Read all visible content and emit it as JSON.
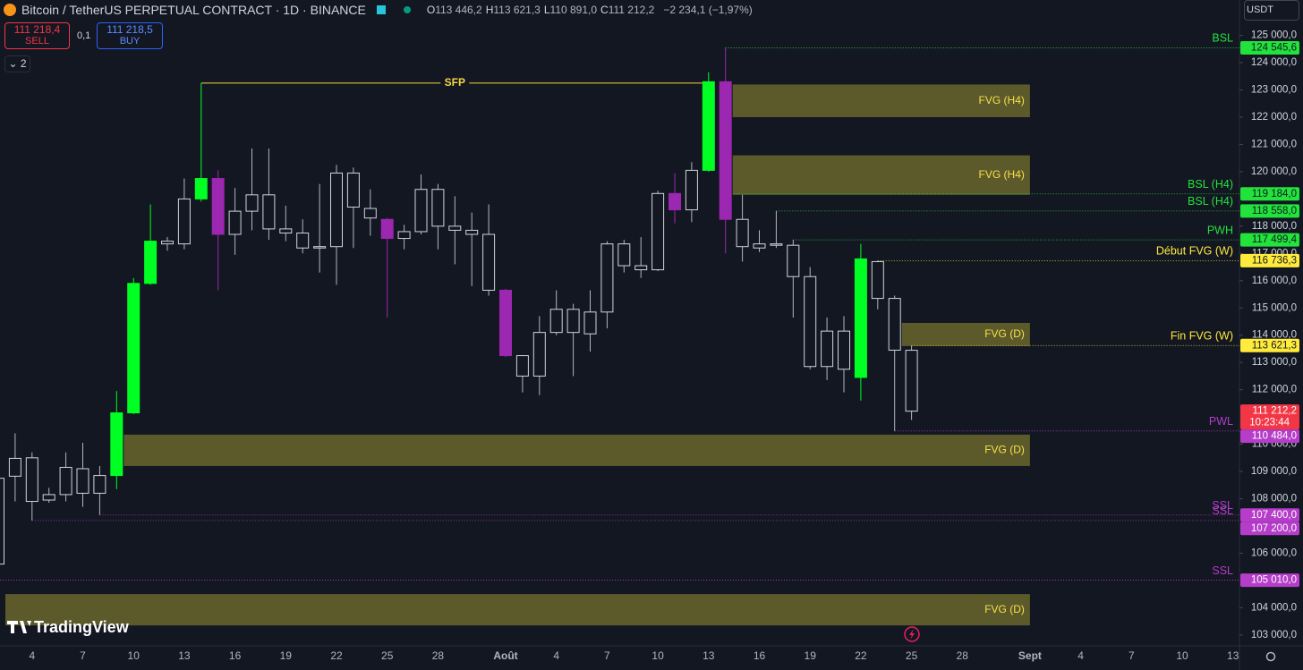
{
  "header": {
    "title": "Bitcoin / TetherUS PERPETUAL CONTRACT · 1D · BINANCE",
    "ohlc": [
      {
        "key": "O",
        "value": "113 446,2"
      },
      {
        "key": "H",
        "value": "113 621,3"
      },
      {
        "key": "L",
        "value": "110 891,0"
      },
      {
        "key": "C",
        "value": "111 212,2"
      }
    ],
    "change": "−2 234,1 (−1,97%)"
  },
  "trade": {
    "sell_price": "111 218,4",
    "sell": "SELL",
    "spread": "0,1",
    "buy_price": "111 218,5",
    "buy": "BUY"
  },
  "indicators": "2",
  "currency": "USDT",
  "brand": "TradingView",
  "chart_data": {
    "type": "candlestick",
    "categories": [
      null,
      null,
      "4",
      null,
      null,
      "7",
      null,
      null,
      "10",
      null,
      null,
      "13",
      null,
      null,
      "16",
      null,
      null,
      "19",
      null,
      null,
      "22",
      null,
      null,
      "25",
      null,
      null,
      "28",
      null,
      null,
      null,
      "Août",
      null,
      null,
      "4",
      null,
      null,
      "7",
      null,
      null,
      "10",
      null,
      null,
      "13",
      null,
      null,
      "16",
      null,
      null,
      "19",
      null,
      null,
      "22",
      null,
      null,
      "25",
      null,
      null,
      "28",
      null,
      null,
      null,
      "Sept",
      null,
      null,
      "4",
      null,
      null,
      "7",
      null,
      null,
      "10",
      null,
      null,
      "13"
    ],
    "open": [
      105600,
      108825,
      109500,
      107950,
      108150,
      109100,
      108200,
      108850,
      111150,
      115900,
      117450,
      117350,
      119000,
      119750,
      117700,
      118550,
      119150,
      117900,
      117750,
      117200,
      117250,
      119950,
      118300,
      118250,
      117550,
      117800,
      119350,
      118000,
      117850,
      117700,
      115650,
      113250,
      112500,
      114100,
      114950,
      114050,
      114850,
      117350,
      116550,
      116400,
      119200,
      118600,
      120050,
      123300,
      118250,
      117200,
      117350,
      117300,
      116150,
      112850,
      114150,
      112450,
      116700,
      115350,
      113446.2,
      null,
      null,
      null,
      null,
      null,
      null,
      null,
      null,
      null,
      null,
      null,
      null,
      null,
      null,
      null,
      null,
      null,
      null,
      null
    ],
    "high": [
      108950,
      110400,
      109700,
      108400,
      109700,
      110050,
      109200,
      111950,
      116100,
      118800,
      117600,
      119750,
      123250,
      120050,
      119400,
      120850,
      120850,
      118750,
      118250,
      119550,
      120250,
      120150,
      119350,
      118300,
      118050,
      119900,
      119550,
      119100,
      118500,
      118800,
      115700,
      113250,
      114700,
      115650,
      115150,
      115650,
      117450,
      117500,
      117600,
      119300,
      119950,
      120350,
      123650,
      124545.6,
      119150,
      117850,
      118558,
      117499.4,
      116500,
      114650,
      114700,
      117350,
      116736.3,
      115450,
      113621.3,
      null,
      null,
      null,
      null,
      null,
      null,
      null,
      null,
      null,
      null,
      null,
      null,
      null,
      null,
      null,
      null,
      null,
      null,
      null
    ],
    "low": [
      105550,
      107900,
      107200,
      107850,
      107900,
      107700,
      107400,
      108350,
      111100,
      115850,
      117100,
      117150,
      118900,
      115650,
      116950,
      117850,
      117500,
      117450,
      117000,
      116300,
      115850,
      117200,
      117650,
      114650,
      117150,
      117700,
      117150,
      116600,
      115800,
      115450,
      113200,
      111900,
      111800,
      114000,
      112500,
      113400,
      114250,
      116300,
      116100,
      116350,
      118100,
      118150,
      120000,
      117000,
      116700,
      117050,
      117200,
      114650,
      112750,
      112350,
      111900,
      111600,
      114950,
      110484,
      110891,
      null,
      null,
      null,
      null,
      null,
      null,
      null,
      null,
      null,
      null,
      null,
      null,
      null,
      null,
      null,
      null,
      null,
      null,
      null
    ],
    "close": [
      108750,
      109480,
      107900,
      108150,
      109150,
      108200,
      108850,
      111150,
      115900,
      117450,
      117350,
      119000,
      119750,
      117700,
      118550,
      119150,
      117900,
      117750,
      117200,
      117250,
      119950,
      118700,
      118650,
      117550,
      117800,
      119350,
      118000,
      117850,
      117700,
      115650,
      113250,
      112500,
      114100,
      114950,
      114100,
      114850,
      117350,
      116550,
      116400,
      119200,
      118600,
      120050,
      123300,
      118250,
      117250,
      117350,
      117300,
      116150,
      112850,
      114150,
      112750,
      116800,
      115350,
      113450,
      111212.2,
      null,
      null,
      null,
      null,
      null,
      null,
      null,
      null,
      null,
      null,
      null,
      null,
      null,
      null,
      null,
      null,
      null,
      null,
      null
    ],
    "colors": [
      "#d1d4dc",
      "#d1d4dc",
      "#d1d4dc",
      "#d1d4dc",
      "#d1d4dc",
      "#d1d4dc",
      "#d1d4dc",
      "#00ff22",
      "#00ff22",
      "#00ff22",
      "#d1d4dc",
      "#d1d4dc",
      "#00ff22",
      "#9c27b0",
      "#d1d4dc",
      "#d1d4dc",
      "#d1d4dc",
      "#d1d4dc",
      "#d1d4dc",
      "#d1d4dc",
      "#d1d4dc",
      "#d1d4dc",
      "#d1d4dc",
      "#9c27b0",
      "#d1d4dc",
      "#d1d4dc",
      "#d1d4dc",
      "#d1d4dc",
      "#d1d4dc",
      "#d1d4dc",
      "#9c27b0",
      "#d1d4dc",
      "#d1d4dc",
      "#d1d4dc",
      "#d1d4dc",
      "#d1d4dc",
      "#d1d4dc",
      "#d1d4dc",
      "#d1d4dc",
      "#d1d4dc",
      "#9c27b0",
      "#d1d4dc",
      "#00ff22",
      "#9c27b0",
      "#d1d4dc",
      "#d1d4dc",
      "#d1d4dc",
      "#d1d4dc",
      "#d1d4dc",
      "#d1d4dc",
      "#d1d4dc",
      "#00ff22",
      "#d1d4dc",
      "#d1d4dc",
      "#d1d4dc",
      null,
      null,
      null,
      null,
      null,
      null,
      null,
      null,
      null,
      null,
      null,
      null,
      null,
      null,
      null,
      null,
      null,
      null,
      null
    ],
    "ylim": [
      102600,
      126300
    ],
    "yticks": [
      {
        "value": 125000,
        "label": "125 000,0"
      },
      {
        "value": 124000,
        "label": "124 000,0"
      },
      {
        "value": 123000,
        "label": "123 000,0"
      },
      {
        "value": 122000,
        "label": "122 000,0"
      },
      {
        "value": 121000,
        "label": "121 000,0"
      },
      {
        "value": 120000,
        "label": "120 000,0"
      },
      {
        "value": 118000,
        "label": "118 000,0"
      },
      {
        "value": 117000,
        "label": "117 000,0"
      },
      {
        "value": 116000,
        "label": "116 000,0"
      },
      {
        "value": 115000,
        "label": "115 000,0"
      },
      {
        "value": 114000,
        "label": "114 000,0"
      },
      {
        "value": 113000,
        "label": "113 000,0"
      },
      {
        "value": 112000,
        "label": "112 000,0"
      },
      {
        "value": 110000,
        "label": "110 000,0"
      },
      {
        "value": 109000,
        "label": "109 000,0"
      },
      {
        "value": 108000,
        "label": "108 000,0"
      },
      {
        "value": 106000,
        "label": "106 000,0"
      },
      {
        "value": 104000,
        "label": "104 000,0"
      },
      {
        "value": 103000,
        "label": "103 000,0"
      }
    ],
    "zone_color": "#5c592b",
    "zones": [
      {
        "label": "FVG (H4)",
        "top": 123200,
        "bottom": 122000,
        "from": 43,
        "to": 61
      },
      {
        "label": "FVG (H4)",
        "top": 120600,
        "bottom": 119150,
        "from": 43,
        "to": 61
      },
      {
        "label": "FVG (D)",
        "top": 114450,
        "bottom": 113600,
        "from": 53,
        "to": 61
      },
      {
        "label": "FVG (D)",
        "top": 110350,
        "bottom": 109200,
        "from": 7,
        "to": 61
      },
      {
        "label": "FVG (D)",
        "top": 104500,
        "bottom": 103350,
        "from": 0,
        "to": 61
      }
    ],
    "levels": [
      {
        "label": "BSL",
        "value": 124545.6,
        "value_label": "124 545,6",
        "from": 43,
        "color": "#22e33c"
      },
      {
        "label": "BSL (H4)",
        "value": 119184,
        "value_label": "119 184,0",
        "from": 43,
        "color": "#22e33c"
      },
      {
        "label": "BSL (H4)",
        "value": 118558,
        "value_label": "118 558,0",
        "from": 46,
        "color": "#22e33c"
      },
      {
        "label": "PWH",
        "value": 117499.4,
        "value_label": "117 499,4",
        "from": 47,
        "color": "#22e33c"
      },
      {
        "label": "Début FVG (W)",
        "value": 116736.3,
        "value_label": "116 736,3",
        "from": 52,
        "color": "#ffeb3b"
      },
      {
        "label": "Fin FVG (W)",
        "value": 113621.3,
        "value_label": "113 621,3",
        "from": 54,
        "color": "#ffeb3b"
      },
      {
        "label": "PWL",
        "value": 110484,
        "value_label": "110 484,0",
        "from": 53,
        "color": "#b53dc9"
      },
      {
        "label": "SSL",
        "value": 107400,
        "value_label": "107 400,0",
        "from": 6,
        "color": "#b53dc9"
      },
      {
        "label": "SSL",
        "value": 107200,
        "value_label": "107 200,0",
        "from": 2,
        "color": "#b53dc9"
      },
      {
        "label": "SSL",
        "value": 105010,
        "value_label": "105 010,0",
        "from": 0,
        "color": "#b53dc9"
      }
    ],
    "annotation": {
      "text": "SFP",
      "value": 123250,
      "from": 12,
      "to": 42,
      "color": "#f5d63d"
    },
    "last_price": {
      "label": "111 212,2",
      "countdown": "10:23:44",
      "color": "#f23645"
    }
  }
}
